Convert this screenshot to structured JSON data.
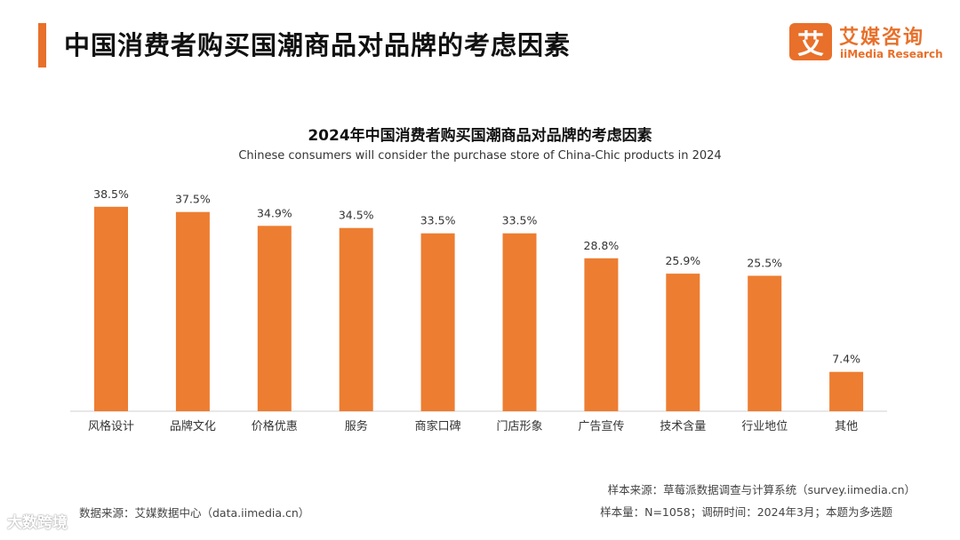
{
  "header": {
    "title": "中国消费者购买国潮商品对品牌的考虑因素"
  },
  "logo": {
    "mark": "艾",
    "name_cn": "艾媒咨询",
    "name_en": "iiMedia Research"
  },
  "colors": {
    "accent": "#e8702a",
    "bar": "#ed7d31"
  },
  "chart_data": {
    "type": "bar",
    "title": "2024年中国消费者购买国潮商品对品牌的考虑因素",
    "subtitle": "Chinese consumers will consider the purchase store of China-Chic products in 2024",
    "categories": [
      "风格设计",
      "品牌文化",
      "价格优惠",
      "服务",
      "商家口碑",
      "门店形象",
      "广告宣传",
      "技术含量",
      "行业地位",
      "其他"
    ],
    "values": [
      38.5,
      37.5,
      34.9,
      34.5,
      33.5,
      33.5,
      28.8,
      25.9,
      25.5,
      7.4
    ],
    "value_labels": [
      "38.5%",
      "37.5%",
      "34.9%",
      "34.5%",
      "33.5%",
      "33.5%",
      "28.8%",
      "25.9%",
      "25.5%",
      "7.4%"
    ],
    "unit": "%",
    "ylim": [
      0,
      40
    ],
    "xlabel": "",
    "ylabel": "",
    "grid": false,
    "legend": "none"
  },
  "footer": {
    "source": "数据来源：艾媒数据中心（data.iimedia.cn）",
    "sample_source": "样本来源：草莓派数据调查与计算系统（survey.iimedia.cn）",
    "sample_info": "样本量：N=1058；调研时间：2024年3月；本题为多选题"
  },
  "watermark": "大数跨境"
}
